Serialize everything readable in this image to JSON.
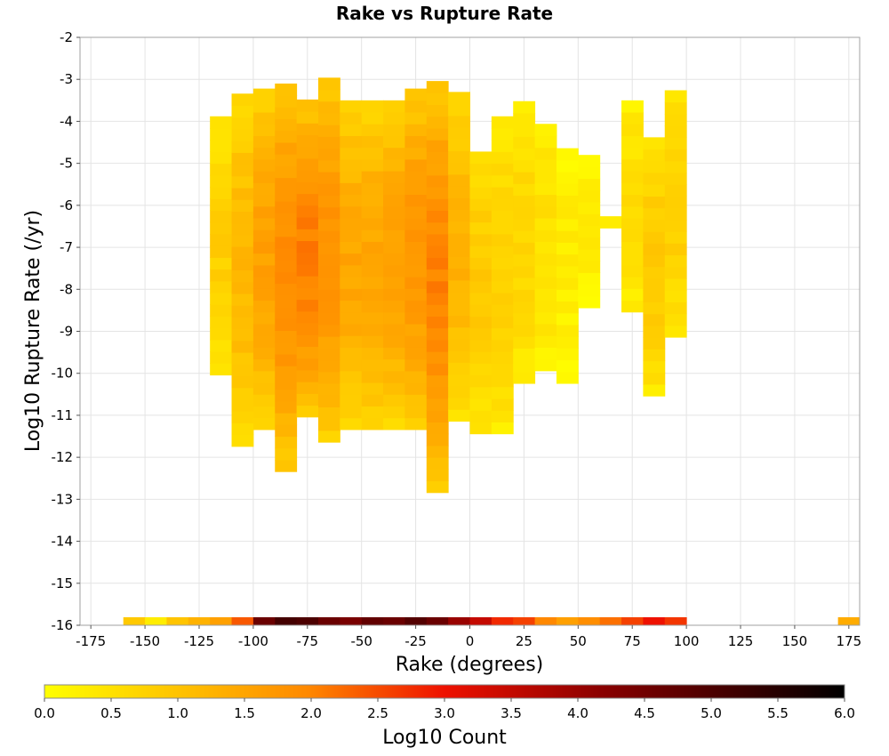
{
  "chart_data": {
    "type": "heatmap",
    "title": "Rake vs Rupture Rate",
    "xlabel": "Rake (degrees)",
    "ylabel": "Log10 Rupture Rate (/yr)",
    "xlim": [
      -180,
      180
    ],
    "ylim": [
      -16,
      -2
    ],
    "x_ticks": [
      -175,
      -150,
      -125,
      -100,
      -75,
      -50,
      -25,
      0,
      25,
      50,
      75,
      100,
      125,
      150,
      175
    ],
    "y_ticks": [
      -2,
      -3,
      -4,
      -5,
      -6,
      -7,
      -8,
      -9,
      -10,
      -11,
      -12,
      -13,
      -14,
      -15,
      -16
    ],
    "grid": true,
    "bin_size": {
      "rake": 10,
      "log_rate": 0.28
    },
    "colorbar": {
      "label": "Log10 Count",
      "min": 0.0,
      "max": 6.0,
      "ticks": [
        "0.0",
        "0.5",
        "1.0",
        "1.5",
        "2.0",
        "2.5",
        "3.0",
        "3.5",
        "4.0",
        "4.5",
        "5.0",
        "5.5",
        "6.0"
      ],
      "colors": [
        "#ffff00",
        "#ff8800",
        "#ee1100",
        "#880000",
        "#000000"
      ]
    },
    "bottom_row": {
      "log_rate": -16,
      "rake": [
        -155,
        -145,
        -135,
        -125,
        -115,
        -105,
        -95,
        -85,
        -75,
        -65,
        -55,
        -45,
        -35,
        -25,
        -15,
        -5,
        5,
        15,
        25,
        35,
        45,
        55,
        65,
        75,
        85,
        95,
        175
      ],
      "log_count": [
        0.9,
        0.3,
        1.0,
        1.3,
        1.6,
        2.4,
        4.6,
        5.1,
        5.0,
        4.6,
        4.4,
        4.7,
        4.6,
        4.9,
        4.6,
        4.0,
        3.5,
        2.8,
        2.6,
        2.0,
        1.6,
        1.9,
        2.2,
        2.6,
        3.0,
        2.7,
        1.4
      ]
    },
    "cluster": {
      "rake": [
        -115,
        -105,
        -95,
        -85,
        -75,
        -65,
        -55,
        -45,
        -35,
        -25,
        -15,
        -5,
        5,
        15,
        25,
        35,
        45,
        55,
        65,
        75,
        85,
        95
      ],
      "log_rate_range": [
        [
          -9.9,
          -4.0
        ],
        [
          -11.6,
          -3.3
        ],
        [
          -11.2,
          -3.3
        ],
        [
          -12.2,
          -3.0
        ],
        [
          -10.9,
          -3.6
        ],
        [
          -11.5,
          -3.0
        ],
        [
          -11.2,
          -3.6
        ],
        [
          -11.2,
          -3.6
        ],
        [
          -11.2,
          -3.6
        ],
        [
          -11.2,
          -3.3
        ],
        [
          -12.7,
          -3.0
        ],
        [
          -11.0,
          -3.3
        ],
        [
          -11.3,
          -4.6
        ],
        [
          -11.3,
          -3.9
        ],
        [
          -10.1,
          -3.6
        ],
        [
          -9.8,
          -4.0
        ],
        [
          -10.1,
          -4.6
        ],
        [
          -8.3,
          -4.9
        ],
        [
          -6.4,
          -6.4
        ],
        [
          -8.4,
          -3.6
        ],
        [
          -10.4,
          -4.3
        ],
        [
          -9.0,
          -3.3
        ]
      ],
      "peak_log_count": [
        0.8,
        1.2,
        1.6,
        1.9,
        2.1,
        1.8,
        1.5,
        1.5,
        1.6,
        1.8,
        2.0,
        1.3,
        0.9,
        0.8,
        0.7,
        0.5,
        0.3,
        0.3,
        0.2,
        0.6,
        0.9,
        0.8
      ]
    }
  }
}
